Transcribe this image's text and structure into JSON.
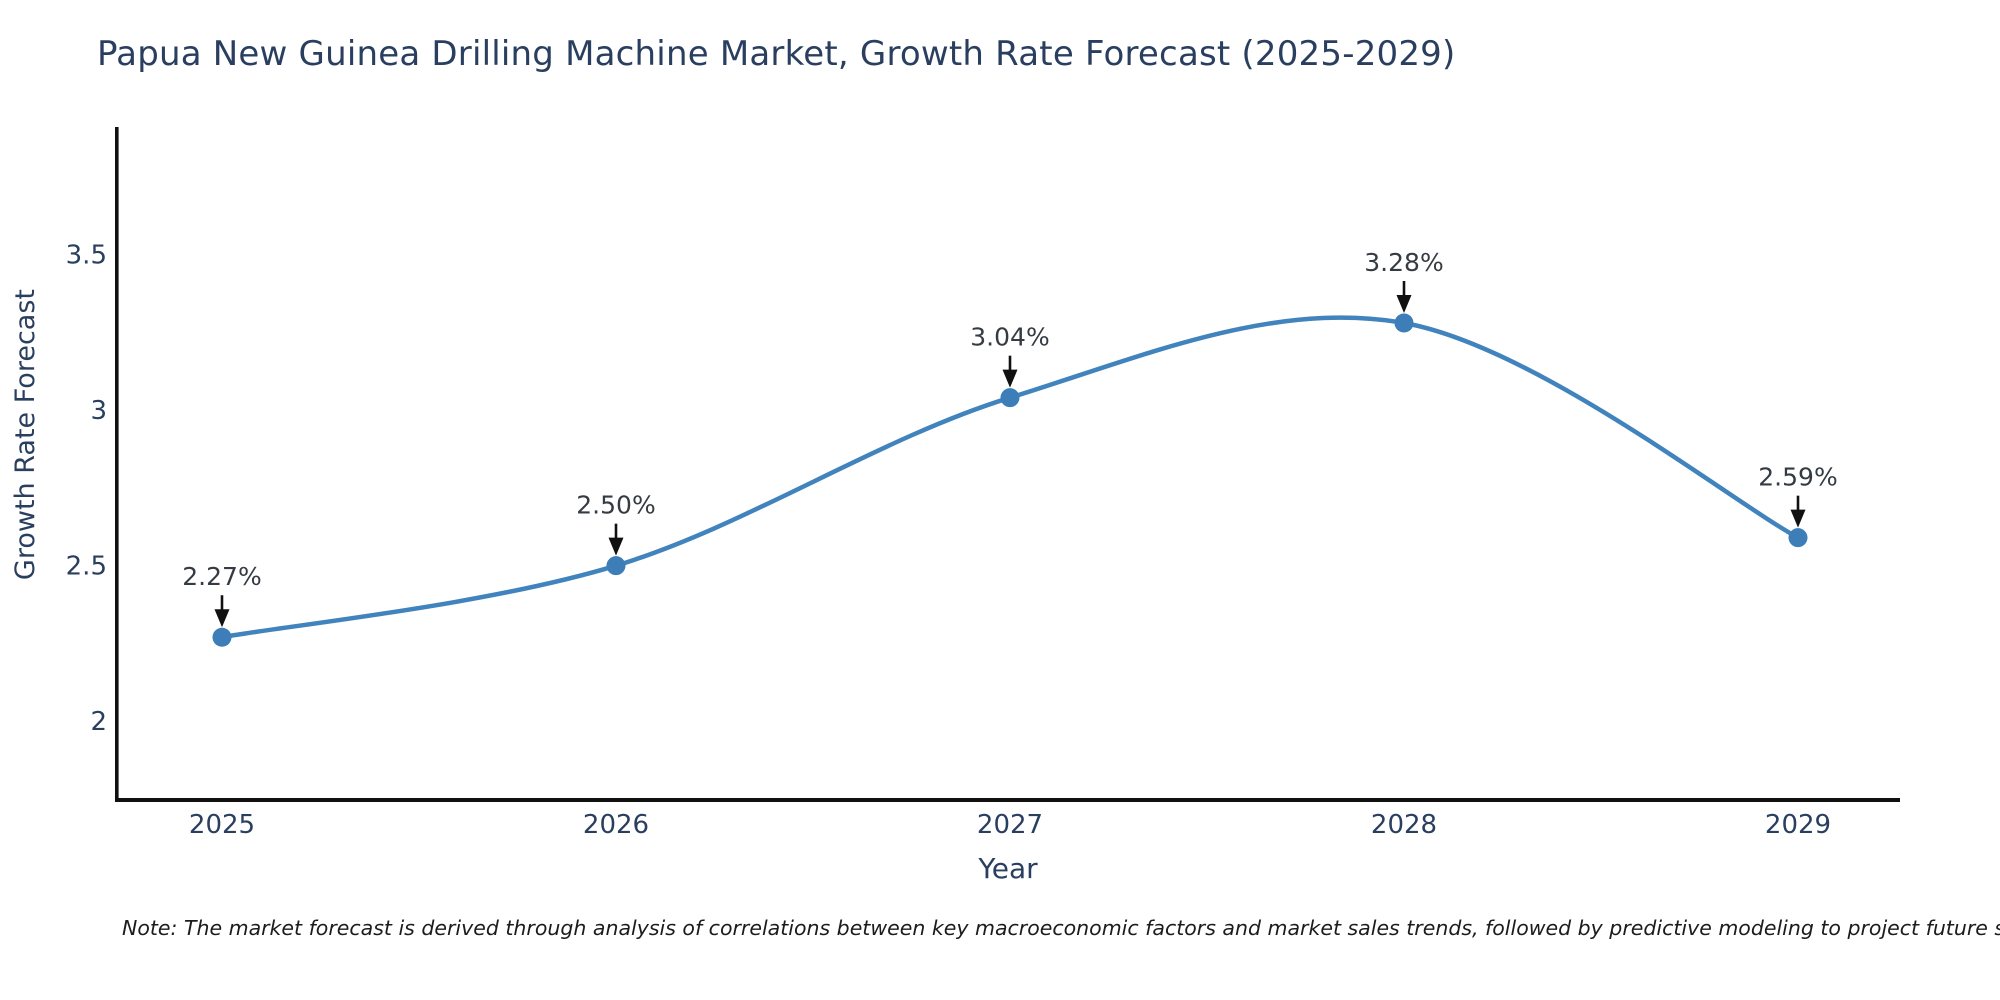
{
  "figure": {
    "title": "Papua New Guinea Drilling Machine Market, Growth Rate Forecast (2025-2029)",
    "note": "Note: The market forecast is derived through analysis of correlations between key macroeconomic factors and market sales trends, followed by predictive modeling to project future sales"
  },
  "chart_data": {
    "type": "line",
    "title": "Papua New Guinea Drilling Machine Market, Growth Rate Forecast (2025-2029)",
    "xlabel": "Year",
    "ylabel": "Growth Rate Forecast",
    "categories": [
      "2025",
      "2026",
      "2027",
      "2028",
      "2029"
    ],
    "series": [
      {
        "name": "Growth Rate Forecast",
        "values": [
          2.27,
          2.5,
          3.04,
          3.28,
          2.59
        ]
      }
    ],
    "point_labels": [
      "2.27%",
      "2.50%",
      "3.04%",
      "3.28%",
      "2.59%"
    ],
    "yticks": {
      "values": [
        2,
        2.5,
        3,
        3.5
      ],
      "labels": [
        "2",
        "2.5",
        "3",
        "3.5"
      ]
    },
    "ylim": [
      1.75,
      3.91
    ],
    "grid": false,
    "legend": "none",
    "line_shape": "spline",
    "annotations_have_arrows": true,
    "colors": {
      "line": "#4183bd",
      "marker": "#3d7eb8",
      "axis": "#101010",
      "tick_text": "#2a3f5f",
      "annotation_text": "#353b43",
      "arrow": "#111111",
      "background": "#ffffff"
    }
  }
}
